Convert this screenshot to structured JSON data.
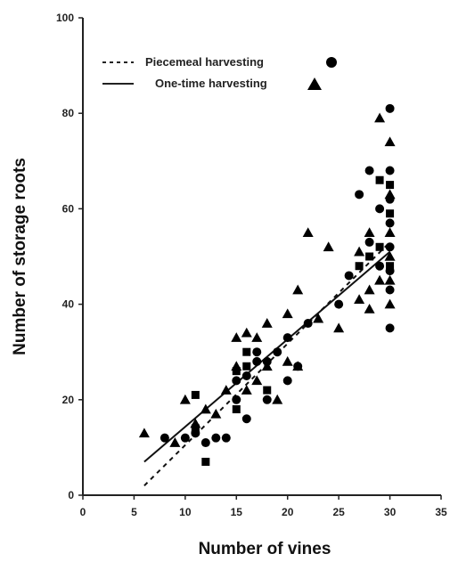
{
  "chart_data": {
    "type": "scatter",
    "xlabel": "Number of vines",
    "ylabel": "Number of storage roots",
    "xlim": [
      0,
      35
    ],
    "ylim": [
      0,
      100
    ],
    "xticks": [
      "0",
      "5",
      "10",
      "15",
      "20",
      "25",
      "30",
      "35"
    ],
    "yticks": [
      "0",
      "20",
      "40",
      "60",
      "80",
      "100"
    ],
    "grid": false,
    "legend_position": "top-left",
    "series": [
      {
        "name": "Piecemeal harvesting",
        "marker": "circle",
        "fit_line": "dashed",
        "color": "#000000",
        "points": [
          [
            8,
            12
          ],
          [
            10,
            12
          ],
          [
            11,
            13
          ],
          [
            12,
            11
          ],
          [
            13,
            12
          ],
          [
            14,
            12
          ],
          [
            15,
            20
          ],
          [
            15,
            24
          ],
          [
            16,
            16
          ],
          [
            16,
            25
          ],
          [
            17,
            28
          ],
          [
            17,
            30
          ],
          [
            18,
            28
          ],
          [
            18,
            20
          ],
          [
            19,
            30
          ],
          [
            20,
            24
          ],
          [
            20,
            33
          ],
          [
            21,
            27
          ],
          [
            22,
            36
          ],
          [
            25,
            40
          ],
          [
            26,
            46
          ],
          [
            27,
            63
          ],
          [
            28,
            68
          ],
          [
            28,
            53
          ],
          [
            29,
            60
          ],
          [
            29,
            48
          ],
          [
            30,
            81
          ],
          [
            30,
            68
          ],
          [
            30,
            62
          ],
          [
            30,
            57
          ],
          [
            30,
            52
          ],
          [
            30,
            47
          ],
          [
            30,
            43
          ],
          [
            30,
            35
          ]
        ],
        "fit": [
          [
            6,
            2
          ],
          [
            30,
            53
          ]
        ]
      },
      {
        "name": "One-time harvesting",
        "marker": "triangle",
        "fit_line": "solid",
        "color": "#000000",
        "points": [
          [
            6,
            13
          ],
          [
            9,
            11
          ],
          [
            10,
            20
          ],
          [
            11,
            15
          ],
          [
            12,
            18
          ],
          [
            13,
            17
          ],
          [
            14,
            22
          ],
          [
            15,
            33
          ],
          [
            15,
            27
          ],
          [
            16,
            34
          ],
          [
            16,
            22
          ],
          [
            17,
            24
          ],
          [
            17,
            33
          ],
          [
            18,
            36
          ],
          [
            18,
            27
          ],
          [
            19,
            20
          ],
          [
            20,
            38
          ],
          [
            20,
            28
          ],
          [
            21,
            43
          ],
          [
            21,
            27
          ],
          [
            22,
            55
          ],
          [
            23,
            37
          ],
          [
            24,
            52
          ],
          [
            25,
            35
          ],
          [
            27,
            41
          ],
          [
            27,
            51
          ],
          [
            28,
            55
          ],
          [
            28,
            43
          ],
          [
            28,
            39
          ],
          [
            29,
            79
          ],
          [
            29,
            45
          ],
          [
            30,
            74
          ],
          [
            30,
            63
          ],
          [
            30,
            55
          ],
          [
            30,
            50
          ],
          [
            30,
            45
          ],
          [
            30,
            40
          ]
        ],
        "fit": [
          [
            6,
            7
          ],
          [
            30,
            51
          ]
        ]
      }
    ],
    "extra_squares": [
      [
        11,
        21
      ],
      [
        12,
        7
      ],
      [
        15,
        26
      ],
      [
        16,
        30
      ],
      [
        18,
        22
      ],
      [
        28,
        50
      ],
      [
        29,
        66
      ],
      [
        30,
        65
      ],
      [
        30,
        59
      ],
      [
        30,
        48
      ],
      [
        29,
        52
      ],
      [
        27,
        48
      ],
      [
        16,
        27
      ],
      [
        15,
        18
      ],
      [
        11,
        14
      ]
    ]
  }
}
